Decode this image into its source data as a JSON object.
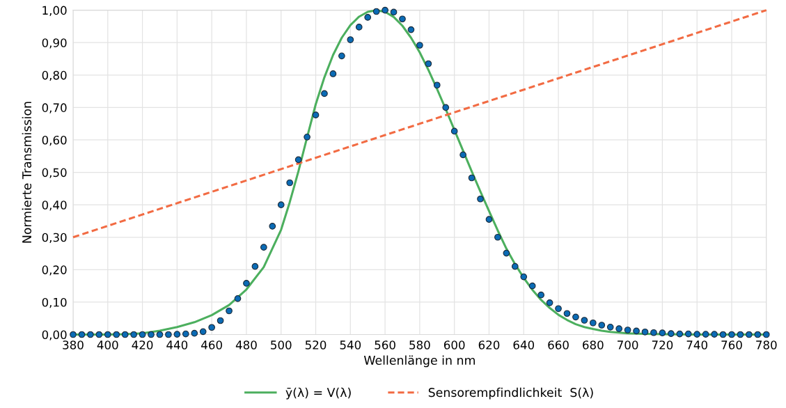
{
  "chart_data": {
    "type": "line",
    "xlabel": "Wellenlänge in nm",
    "ylabel": "Normierte Transmission",
    "xlim": [
      380,
      780
    ],
    "xticks": [
      380,
      400,
      420,
      440,
      460,
      480,
      500,
      520,
      540,
      560,
      580,
      600,
      620,
      640,
      660,
      680,
      700,
      720,
      740,
      760,
      780
    ],
    "ylim": [
      0,
      1
    ],
    "yticks": [
      {
        "value": 0,
        "label": "0,00"
      },
      {
        "value": 0.1,
        "label": "0,10"
      },
      {
        "value": 0.2,
        "label": "0,20"
      },
      {
        "value": 0.3,
        "label": "0,30"
      },
      {
        "value": 0.4,
        "label": "0,40"
      },
      {
        "value": 0.5,
        "label": "0,50"
      },
      {
        "value": 0.6,
        "label": "0,60"
      },
      {
        "value": 0.7,
        "label": "0,70"
      },
      {
        "value": 0.8,
        "label": "0,80"
      },
      {
        "value": 0.9,
        "label": "0,90"
      },
      {
        "value": 1,
        "label": "1,00"
      }
    ],
    "grid": true,
    "legend": "bottom",
    "series": [
      {
        "name": "ȳ(λ) = V(λ)",
        "type": "line",
        "color": "#4caf5e",
        "line_style": "solid",
        "marker": "none",
        "x": [
          380,
          390,
          400,
          410,
          420,
          430,
          440,
          450,
          460,
          470,
          480,
          490,
          500,
          505,
          510,
          515,
          520,
          525,
          530,
          535,
          540,
          545,
          550,
          555,
          560,
          565,
          570,
          575,
          580,
          585,
          590,
          595,
          600,
          605,
          610,
          615,
          620,
          625,
          630,
          635,
          640,
          645,
          650,
          655,
          660,
          665,
          670,
          675,
          680,
          685,
          690,
          700,
          710,
          720,
          740,
          760,
          780
        ],
        "values": [
          0.0,
          0.0,
          0.0,
          0.001,
          0.004,
          0.012,
          0.023,
          0.038,
          0.06,
          0.091,
          0.139,
          0.208,
          0.323,
          0.408,
          0.503,
          0.608,
          0.71,
          0.793,
          0.862,
          0.915,
          0.954,
          0.98,
          0.995,
          1.0,
          0.995,
          0.979,
          0.952,
          0.915,
          0.87,
          0.816,
          0.757,
          0.695,
          0.631,
          0.567,
          0.503,
          0.441,
          0.381,
          0.321,
          0.265,
          0.217,
          0.175,
          0.138,
          0.107,
          0.082,
          0.061,
          0.045,
          0.032,
          0.023,
          0.017,
          0.012,
          0.008,
          0.004,
          0.002,
          0.001,
          0.0,
          0.0,
          0.0
        ]
      },
      {
        "name": "Sensorempfindlichkeit  S(λ)",
        "type": "line",
        "color": "#f26b43",
        "line_style": "dashed",
        "marker": "none",
        "x": [
          380,
          780
        ],
        "values": [
          0.3,
          1.0
        ]
      },
      {
        "type": "scatter",
        "color": "#0b6bb5",
        "marker": "circle",
        "x": [
          380,
          385,
          390,
          395,
          400,
          405,
          410,
          415,
          420,
          425,
          430,
          435,
          440,
          445,
          450,
          455,
          460,
          465,
          470,
          475,
          480,
          485,
          490,
          495,
          500,
          505,
          510,
          515,
          520,
          525,
          530,
          535,
          540,
          545,
          550,
          555,
          560,
          565,
          570,
          575,
          580,
          585,
          590,
          595,
          600,
          605,
          610,
          615,
          620,
          625,
          630,
          635,
          640,
          645,
          650,
          655,
          660,
          665,
          670,
          675,
          680,
          685,
          690,
          695,
          700,
          705,
          710,
          715,
          720,
          725,
          730,
          735,
          740,
          745,
          750,
          755,
          760,
          765,
          770,
          775,
          780
        ],
        "values": [
          0.0,
          0.0,
          0.0,
          0.0,
          0.0,
          0.0,
          0.0,
          0.0,
          0.0,
          0.0,
          0.0,
          0.0,
          0.001,
          0.002,
          0.004,
          0.009,
          0.022,
          0.043,
          0.073,
          0.111,
          0.158,
          0.21,
          0.269,
          0.334,
          0.4,
          0.468,
          0.539,
          0.609,
          0.677,
          0.743,
          0.804,
          0.859,
          0.909,
          0.948,
          0.978,
          0.996,
          1.0,
          0.994,
          0.973,
          0.94,
          0.892,
          0.835,
          0.769,
          0.7,
          0.627,
          0.554,
          0.483,
          0.418,
          0.355,
          0.3,
          0.251,
          0.21,
          0.178,
          0.15,
          0.122,
          0.098,
          0.08,
          0.065,
          0.054,
          0.044,
          0.036,
          0.029,
          0.023,
          0.018,
          0.014,
          0.011,
          0.008,
          0.006,
          0.005,
          0.003,
          0.002,
          0.002,
          0.001,
          0.001,
          0.001,
          0.0,
          0.0,
          0.0,
          0.0,
          0.0,
          0.0
        ]
      }
    ]
  }
}
